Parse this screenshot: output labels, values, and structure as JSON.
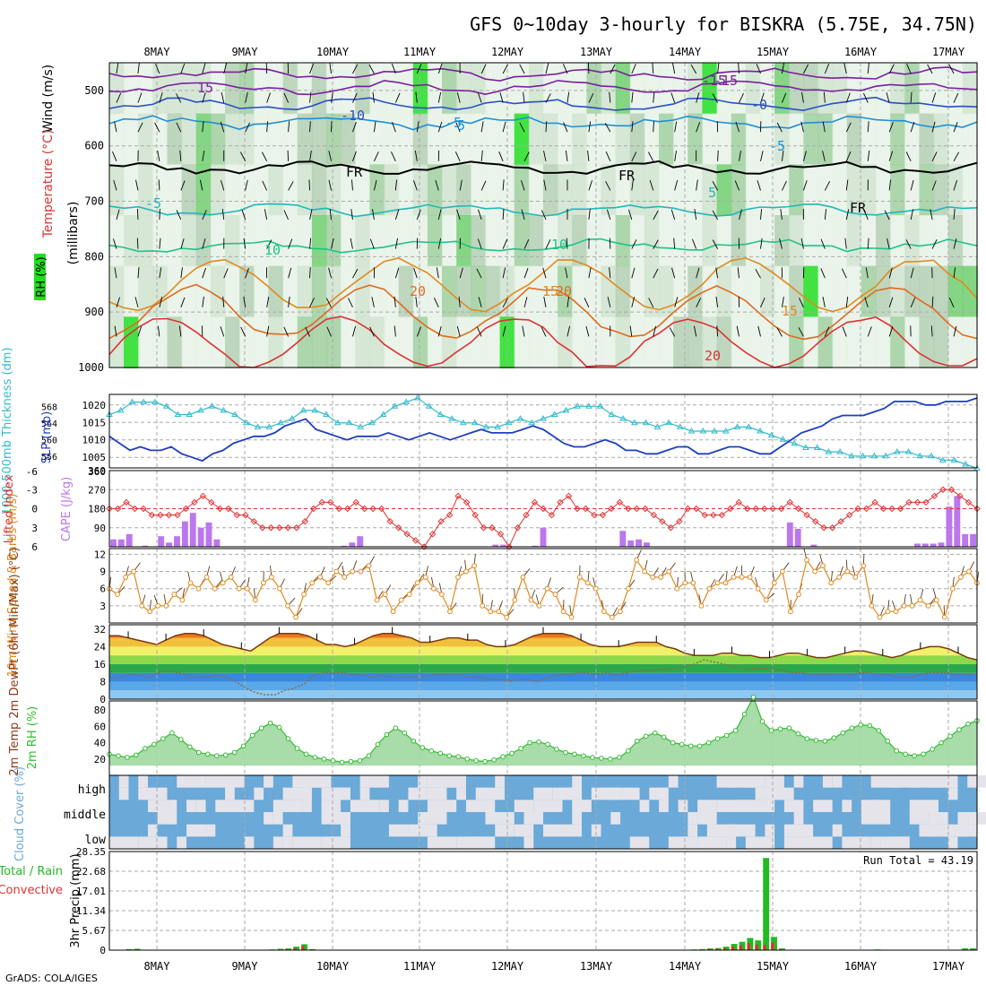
{
  "header": {
    "title": "GFS 0~10day 3-hourly for BISKRA (5.75E, 34.75N)"
  },
  "footer": {
    "credit": "GrADS: COLA/IGES"
  },
  "colors": {
    "grid": "#aaaaaa",
    "rh_green": "#22dd22",
    "slp": "#1f3fbf",
    "thickness": "#33bbcc",
    "lifted": "#dd3333",
    "cape": "#bb77ee",
    "wind": "#e08a1e",
    "rh2m": "#33bb33",
    "cloud": "#6aa9d8",
    "precip_total": "#22bb22",
    "precip_conv": "#dd3333"
  },
  "chart_data": [
    {
      "type": "heatmap",
      "title": "Upper-air cross section",
      "x_ticks": [
        "8MAY",
        "9MAY",
        "10MAY",
        "11MAY",
        "12MAY",
        "13MAY",
        "14MAY",
        "15MAY",
        "16MAY",
        "17MAY"
      ],
      "ylabel": "(millibars)",
      "legend_labels": [
        "Wind (m/s)",
        "Temperature (°C)",
        "RH (%)"
      ],
      "yticks": [
        500,
        600,
        700,
        800,
        900,
        1000
      ],
      "ylim": [
        1000,
        450
      ],
      "contour_labels": [
        "-15",
        "-10",
        "-5",
        "FR",
        "5",
        "10",
        "15",
        "20"
      ],
      "contour_label_values": [
        "15",
        "-10",
        "-5",
        "-15",
        "-5",
        "-0",
        "FR",
        "FR",
        "FR",
        "-5",
        "5",
        "5",
        "10",
        "10",
        "15",
        "20",
        "15",
        "20",
        "-15",
        "20"
      ]
    },
    {
      "type": "line",
      "ylabel_left": "1000-500mb Thickness (dm)",
      "ylabel_right": "SLP (mb)",
      "yticks_left": [
        556,
        560,
        564,
        568
      ],
      "yticks_right": [
        1005,
        1010,
        1015,
        1020
      ],
      "series": [
        {
          "name": "SLP (mb)",
          "axis": "right",
          "values": [
            1011,
            1009,
            1007,
            1008,
            1007,
            1007,
            1008,
            1006,
            1005,
            1004,
            1006,
            1007,
            1009,
            1010,
            1011,
            1011,
            1012,
            1014,
            1015,
            1016,
            1013,
            1012,
            1011,
            1010,
            1011,
            1011,
            1011,
            1012,
            1011,
            1010,
            1011,
            1012,
            1011,
            1010,
            1011,
            1012,
            1013,
            1012,
            1012,
            1012,
            1013,
            1014,
            1013,
            1011,
            1009,
            1008,
            1008,
            1009,
            1010,
            1009,
            1007,
            1007,
            1006,
            1006,
            1007,
            1008,
            1008,
            1006,
            1006,
            1007,
            1008,
            1008,
            1007,
            1006,
            1006,
            1008,
            1010,
            1012,
            1013,
            1014,
            1016,
            1017,
            1017,
            1017,
            1018,
            1019,
            1021,
            1021,
            1021,
            1020,
            1020,
            1021,
            1021,
            1021,
            1022
          ]
        },
        {
          "name": "Thickness (dm)",
          "axis": "left",
          "values": [
            566,
            567,
            569,
            569,
            569,
            568,
            566,
            566,
            567,
            568,
            567,
            566,
            564,
            563,
            563,
            564,
            565,
            567,
            567,
            566,
            564,
            564,
            563,
            564,
            566,
            568,
            569,
            570,
            568,
            566,
            565,
            564,
            564,
            563,
            563,
            564,
            565,
            564,
            565,
            566,
            567,
            568,
            568,
            568,
            566,
            565,
            564,
            564,
            563,
            564,
            563,
            562,
            562,
            562,
            562,
            563,
            563,
            562,
            561,
            560,
            559,
            558,
            558,
            557,
            557,
            556,
            556,
            556,
            556,
            557,
            557,
            556,
            556,
            555,
            555,
            554,
            553
          ]
        }
      ]
    },
    {
      "type": "bar",
      "ylabel_left": "Lifted Index",
      "ylabel_right": "CAPE (J/kg)",
      "yticks_left": [
        "-3",
        "0",
        "3",
        "6"
      ],
      "yticks_left_top": "-6",
      "yticks_right": [
        90,
        180,
        270,
        360
      ],
      "series": [
        {
          "name": "CAPE (J/kg)",
          "values": [
            35,
            35,
            60,
            0,
            5,
            0,
            50,
            20,
            50,
            120,
            160,
            90,
            115,
            35,
            0,
            0,
            0,
            0,
            0,
            0,
            0,
            0,
            0,
            0,
            0,
            0,
            0,
            0,
            0,
            5,
            20,
            50,
            0,
            0,
            0,
            0,
            0,
            0,
            0,
            0,
            0,
            0,
            0,
            0,
            0,
            0,
            0,
            0,
            10,
            10,
            0,
            0,
            0,
            5,
            90,
            0,
            0,
            0,
            0,
            0,
            0,
            0,
            0,
            0,
            75,
            30,
            35,
            20,
            0,
            0,
            0,
            0,
            0,
            0,
            0,
            0,
            0,
            0,
            0,
            0,
            0,
            0,
            0,
            0,
            0,
            115,
            85,
            0,
            10,
            0,
            0,
            0,
            0,
            0,
            0,
            0,
            0,
            0,
            0,
            0,
            0,
            15,
            15,
            15,
            20,
            190,
            240,
            60,
            60
          ]
        },
        {
          "name": "Lifted Index",
          "values": [
            0,
            0,
            -1,
            0,
            0,
            1,
            1,
            1,
            1,
            0,
            -1,
            -2,
            -1,
            0,
            0,
            1,
            1,
            2,
            3,
            3,
            3,
            3,
            3,
            2,
            0,
            -1,
            -1,
            0,
            0,
            -1,
            0,
            0,
            0,
            2,
            3,
            4,
            5,
            6,
            4,
            2,
            1,
            -2,
            -1,
            1,
            3,
            3,
            4,
            6,
            3,
            1,
            -1,
            0,
            1,
            -1,
            -2,
            0,
            0,
            1,
            1,
            0,
            -1,
            0,
            0,
            0,
            1,
            2,
            3,
            2,
            0,
            0,
            1,
            1,
            1,
            0,
            -1,
            0,
            0,
            0,
            0,
            0,
            -1,
            0,
            1,
            2,
            3,
            3,
            2,
            1,
            0,
            0,
            -1,
            0,
            0,
            0,
            -1,
            -1,
            -1,
            -2,
            -3,
            -3,
            -2,
            -1,
            0
          ]
        }
      ]
    },
    {
      "type": "line",
      "ylabel": "10m Wind Speed & Barbs (m/s)",
      "yticks": [
        3,
        6,
        9,
        12
      ],
      "series": [
        {
          "name": "10m Wind Speed",
          "values": [
            6,
            5,
            8,
            9,
            3,
            2,
            3,
            3,
            5,
            4,
            7,
            6,
            8,
            6,
            7,
            8,
            6,
            6,
            4,
            7,
            8,
            6,
            3,
            1,
            5,
            7,
            8,
            7,
            9,
            8,
            9,
            9,
            10,
            4,
            5,
            2,
            4,
            5,
            7,
            8,
            6,
            5,
            2,
            8,
            9,
            10,
            3,
            2,
            2,
            1,
            4,
            8,
            4,
            3,
            6,
            5,
            2,
            1,
            8,
            7,
            6,
            2,
            1,
            2,
            6,
            11,
            9,
            8,
            8,
            9,
            6,
            7,
            7,
            3,
            6,
            7,
            7,
            8,
            8,
            8,
            6,
            4,
            7,
            9,
            2,
            5,
            11,
            9,
            10,
            7,
            8,
            9,
            8,
            10,
            3,
            1,
            2,
            2,
            3,
            3,
            4,
            3,
            4,
            1,
            6,
            8,
            9,
            7
          ]
        }
      ]
    },
    {
      "type": "area",
      "ylabel": "2m Temp 2m DewPt (6hr Min/Max) (°C)",
      "yticks": [
        0,
        8,
        16,
        24,
        32
      ],
      "series": [
        {
          "name": "2m Temp",
          "values": [
            29,
            29,
            28,
            27,
            26,
            25,
            27,
            29,
            30,
            30,
            29,
            27,
            25,
            24,
            23,
            22,
            25,
            28,
            30,
            30,
            30,
            29,
            27,
            25,
            25,
            24,
            25,
            27,
            29,
            30,
            30,
            29,
            28,
            26,
            26,
            27,
            28,
            28,
            27,
            27,
            25,
            24,
            24,
            25,
            27,
            29,
            30,
            30,
            30,
            29,
            27,
            25,
            24,
            24,
            24,
            25,
            26,
            26,
            26,
            24,
            23,
            21,
            20,
            20,
            20,
            21,
            21,
            20,
            20,
            19,
            19,
            20,
            21,
            21,
            20,
            19,
            19,
            20,
            21,
            22,
            22,
            21,
            20,
            19,
            20,
            22,
            23,
            24,
            24,
            23,
            21,
            19,
            18
          ]
        },
        {
          "name": "2m DewPt",
          "values": [
            10,
            10,
            11,
            11,
            10,
            12,
            13,
            12,
            11,
            10,
            10,
            11,
            10,
            8,
            5,
            3,
            2,
            2,
            4,
            5,
            7,
            11,
            12,
            12,
            12,
            11,
            11,
            10,
            11,
            10,
            10,
            10,
            10,
            11,
            11,
            11,
            11,
            10,
            10,
            9,
            9,
            8,
            9,
            9,
            8,
            10,
            11,
            11,
            12,
            12,
            11,
            12,
            11,
            12,
            13,
            13,
            13,
            14,
            14,
            15,
            16,
            18,
            17,
            16,
            15,
            14,
            14,
            14,
            14,
            13,
            12,
            12,
            11,
            11,
            11,
            11,
            11,
            12,
            12,
            11,
            11,
            10,
            10,
            11,
            12,
            12,
            12,
            11,
            11,
            11
          ]
        }
      ]
    },
    {
      "type": "area",
      "ylabel": "2m RH (%)",
      "yticks": [
        20,
        40,
        60,
        80
      ],
      "series": [
        {
          "name": "2m RH",
          "values": [
            26,
            24,
            22,
            25,
            33,
            38,
            45,
            52,
            44,
            35,
            28,
            26,
            24,
            25,
            28,
            36,
            49,
            58,
            64,
            59,
            45,
            33,
            26,
            22,
            20,
            18,
            16,
            17,
            18,
            24,
            38,
            50,
            58,
            52,
            42,
            34,
            30,
            27,
            24,
            23,
            20,
            18,
            17,
            19,
            23,
            27,
            33,
            40,
            41,
            38,
            32,
            28,
            26,
            24,
            22,
            21,
            20,
            22,
            30,
            42,
            48,
            52,
            47,
            40,
            38,
            36,
            36,
            40,
            45,
            49,
            55,
            75,
            96,
            66,
            55,
            57,
            58,
            51,
            45,
            43,
            42,
            46,
            52,
            58,
            62,
            61,
            55,
            42,
            30,
            26,
            24,
            26,
            32,
            40,
            48,
            56,
            63,
            67
          ]
        }
      ]
    },
    {
      "type": "heatmap",
      "ylabel": "Cloud Cover (%)",
      "yticks": [
        "high",
        "middle",
        "low"
      ]
    },
    {
      "type": "bar",
      "ylabel": "3hr Precip (mm)",
      "legend_labels": [
        "Total / Rain",
        "Convective"
      ],
      "annotation": "Run Total = 43.19",
      "yticks": [
        0,
        5.67,
        11.34,
        17.01,
        22.68,
        28.35
      ],
      "ylim": [
        0,
        28.35
      ],
      "series": [
        {
          "name": "Total / Rain",
          "values": [
            0,
            0,
            0.3,
            0.4,
            0.1,
            0,
            0,
            0,
            0,
            0,
            0,
            0,
            0,
            0,
            0,
            0,
            0,
            0,
            0,
            0,
            0.2,
            0.4,
            0.5,
            1.0,
            1.7,
            0.3,
            0,
            0,
            0,
            0,
            0,
            0,
            0,
            0,
            0,
            0,
            0,
            0,
            0,
            0,
            0,
            0,
            0,
            0,
            0,
            0,
            0,
            0,
            0,
            0,
            0,
            0,
            0,
            0,
            0,
            0,
            0,
            0,
            0,
            0,
            0,
            0,
            0,
            0,
            0,
            0,
            0,
            0,
            0,
            0,
            0,
            0,
            0,
            0.2,
            0.3,
            0.5,
            0.6,
            1.0,
            1.8,
            2.4,
            3.5,
            2.8,
            26.5,
            3.8,
            0.5,
            0,
            0,
            0,
            0,
            0,
            0,
            0,
            0,
            0,
            0,
            0,
            0.2,
            0,
            0,
            0,
            0,
            0,
            0,
            0,
            0,
            0,
            0,
            0.5,
            0.5
          ]
        },
        {
          "name": "Convective",
          "values": [
            0,
            0,
            0.2,
            0.3,
            0,
            0,
            0,
            0,
            0,
            0,
            0,
            0,
            0,
            0,
            0,
            0,
            0,
            0,
            0,
            0,
            0.1,
            0.2,
            0.3,
            0.6,
            1.2,
            0.2,
            0,
            0,
            0,
            0,
            0,
            0,
            0,
            0,
            0,
            0,
            0,
            0,
            0,
            0,
            0,
            0,
            0,
            0,
            0,
            0,
            0,
            0,
            0,
            0,
            0,
            0,
            0,
            0,
            0,
            0,
            0,
            0,
            0,
            0,
            0,
            0,
            0,
            0,
            0,
            0,
            0,
            0,
            0,
            0,
            0,
            0,
            0,
            0.1,
            0.2,
            0.3,
            0.4,
            0.6,
            1.1,
            1.4,
            2.0,
            1.6,
            1.5,
            2.2,
            0.3,
            0,
            0,
            0,
            0,
            0,
            0,
            0,
            0,
            0,
            0,
            0,
            0.1,
            0,
            0,
            0,
            0,
            0,
            0,
            0,
            0,
            0,
            0,
            0.3,
            0.3
          ]
        }
      ]
    }
  ]
}
